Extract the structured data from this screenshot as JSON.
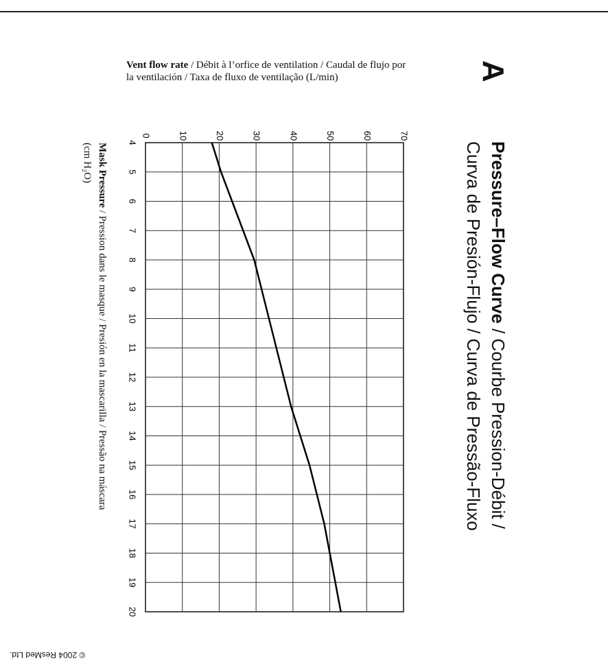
{
  "panel_letter": "A",
  "title": {
    "bold_part": "Pressure–Flow Curve",
    "rest": " / Courbe Pression-Débit /",
    "line2": "Curva de Presión-Flujo / Curva de Pressão-Fluxo"
  },
  "vent_label": {
    "bold_part": "Vent flow rate",
    "rest": " /  Débit à l’orfice de ventilation / Caudal de flujo por la ventilación / Taxa de fluxo de ventilação  (L/min)"
  },
  "mask_label": {
    "bold_part": "Mask Pressure",
    "rest": " / Pression dans le masque / Presión en la mascarilla / Pressão na máscara",
    "unit": "(cm H₂O)"
  },
  "copyright": "© 2004 ResMed Ltd.",
  "chart_data": {
    "type": "line",
    "x": [
      4,
      5,
      6,
      7,
      8,
      9,
      10,
      11,
      12,
      13,
      14,
      15,
      16,
      17,
      18,
      19,
      20
    ],
    "series": [
      {
        "values": [
          18,
          20.5,
          23.5,
          26.5,
          29.5,
          31.5,
          33.5,
          35.5,
          37.5,
          39.5,
          42,
          44.5,
          46.5,
          48.5,
          50,
          51.5,
          53
        ]
      }
    ],
    "xlim": [
      4,
      20
    ],
    "ylim": [
      0,
      70
    ],
    "x_ticks": [
      "4",
      "5",
      "6",
      "7",
      "8",
      "9",
      "10",
      "11",
      "12",
      "13",
      "14",
      "15",
      "16",
      "17",
      "18",
      "19",
      "20"
    ],
    "y_ticks": [
      "0",
      "10",
      "20",
      "30",
      "40",
      "50",
      "60",
      "70"
    ],
    "grid": true,
    "orientation": "rotated-90"
  }
}
